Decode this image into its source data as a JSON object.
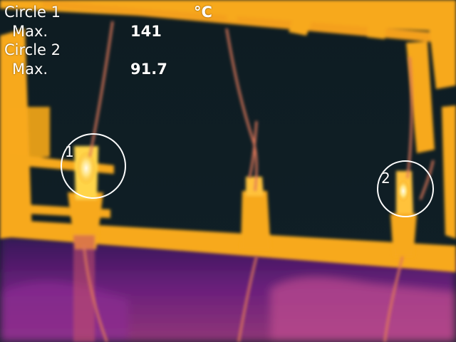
{
  "readings": {
    "unit": "°C",
    "circle1": {
      "label": "Circle 1",
      "max_label": "Max.",
      "max_value": "141"
    },
    "circle2": {
      "label": "Circle 2",
      "max_label": "Max.",
      "max_value": "91.7"
    }
  },
  "markers": {
    "circle1_number": "1",
    "circle2_number": "2"
  },
  "palette": {
    "background": "#0e1c22",
    "hot": "#f7a91b",
    "hotter": "#ffd54a",
    "hottest": "#fff8e0",
    "warm": "#e04a7a",
    "cool": "#6a1a8a",
    "marker_stroke": "#ffffff"
  }
}
